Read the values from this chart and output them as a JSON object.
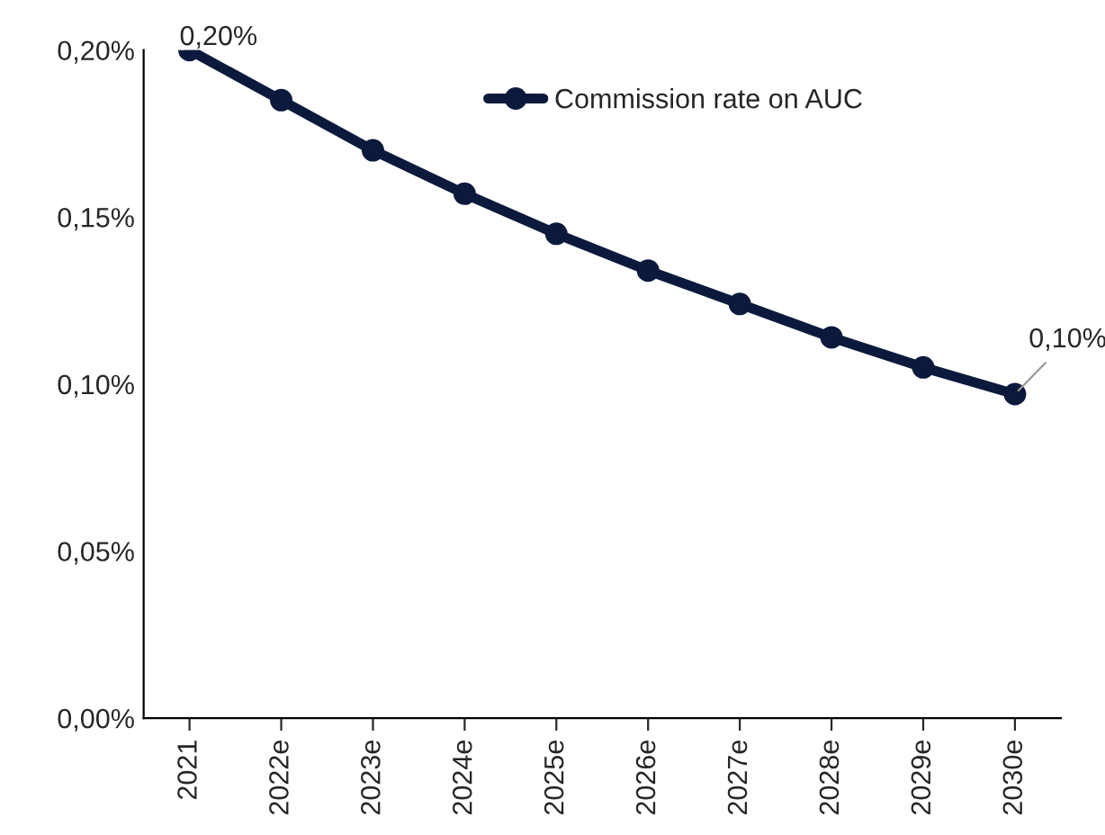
{
  "chart_data": {
    "type": "line",
    "categories": [
      "2021",
      "2022e",
      "2023e",
      "2024e",
      "2025e",
      "2026e",
      "2027e",
      "2028e",
      "2029e",
      "2030e"
    ],
    "series": [
      {
        "name": "Commission rate on AUC",
        "color": "#0b1a3c",
        "values": [
          0.2,
          0.185,
          0.17,
          0.157,
          0.145,
          0.134,
          0.124,
          0.114,
          0.105,
          0.097
        ],
        "value_labels": [
          "0,20%",
          null,
          null,
          null,
          null,
          null,
          null,
          null,
          null,
          "0,10%"
        ]
      }
    ],
    "ylim": [
      0,
      0.2
    ],
    "yticks": [
      {
        "value": 0,
        "label": "0,00%"
      },
      {
        "value": 0.05,
        "label": "0,05%"
      },
      {
        "value": 0.1,
        "label": "0,10%"
      },
      {
        "value": 0.15,
        "label": "0,15%"
      },
      {
        "value": 0.2,
        "label": "0,20%"
      }
    ],
    "marker": "circle",
    "line_style": "solid",
    "grid": false,
    "legend": "top"
  }
}
